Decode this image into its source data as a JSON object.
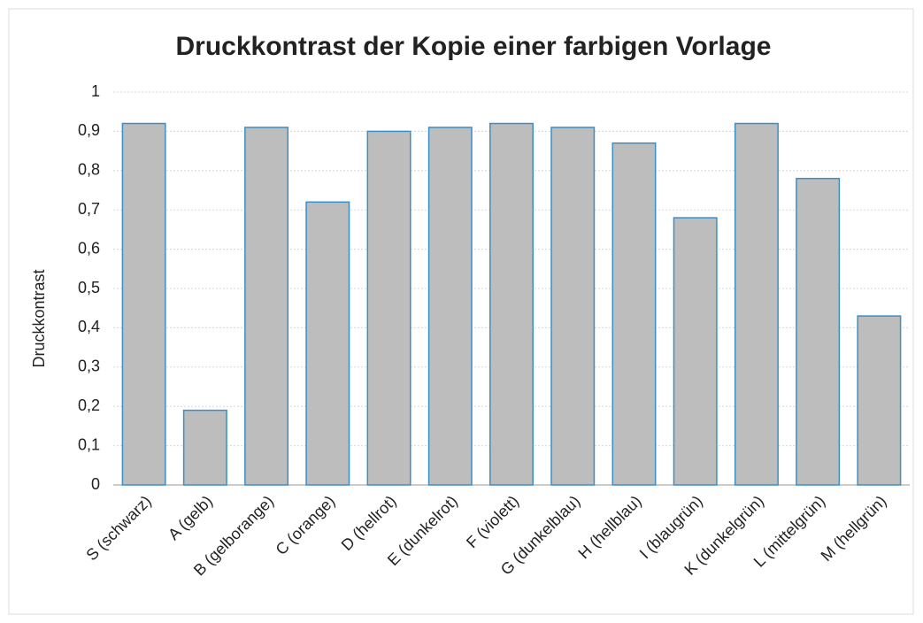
{
  "chart_data": {
    "type": "bar",
    "title": "Druckkontrast der Kopie einer farbigen Vorlage",
    "y_label": "Druckkontrast",
    "categories": [
      "S (schwarz)",
      "A (gelb)",
      "B (gelborange)",
      "C (orange)",
      "D (hellrot)",
      "E (dunkelrot)",
      "F (violett)",
      "G (dunkelblau)",
      "H (hellblau)",
      "I (blaugrün)",
      "K (dunkelgrün)",
      "L (mittelgrün)",
      "M (hellgrün)"
    ],
    "values": [
      0.92,
      0.19,
      0.91,
      0.72,
      0.9,
      0.91,
      0.92,
      0.91,
      0.87,
      0.68,
      0.92,
      0.78,
      0.43
    ],
    "color": "#bdbdbd",
    "edge_color": "#3a8fc8",
    "ylim": [
      0,
      1
    ],
    "yticks": [
      0,
      {
        "value": 0.1,
        "label": "0,1"
      },
      {
        "value": 0.2,
        "label": "0,2"
      },
      {
        "value": 0.3,
        "label": "0,3"
      },
      {
        "value": 0.4,
        "label": "0,4"
      },
      {
        "value": 0.5,
        "label": "0,5"
      },
      {
        "value": 0.6,
        "label": "0,6"
      },
      {
        "value": 0.7,
        "label": "0,7"
      },
      {
        "value": 0.8,
        "label": "0,8"
      },
      {
        "value": 0.9,
        "label": "0,9"
      },
      1
    ],
    "grid": true
  }
}
